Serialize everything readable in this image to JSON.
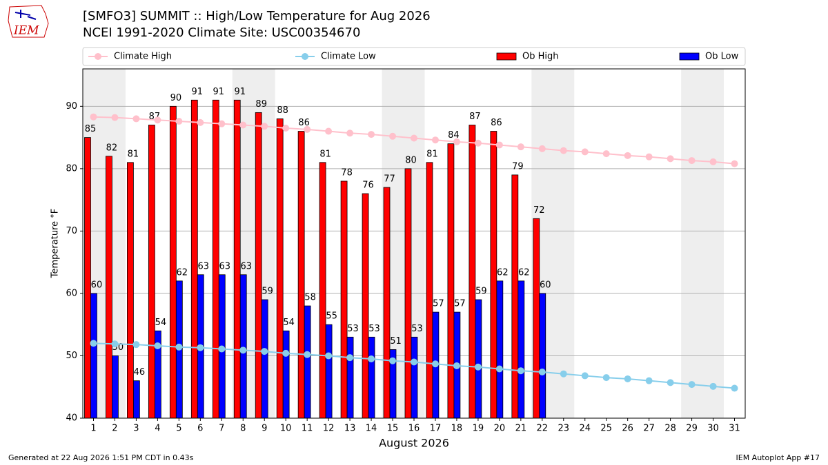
{
  "logo_text": "IEM",
  "footer_left": "Generated at 22 Aug 2026 1:51 PM CDT in 0.43s",
  "footer_right": "IEM Autoplot App #17",
  "chart_data": {
    "type": "bar",
    "title": "[SMFO3] SUMMIT :: High/Low Temperature for Aug 2026",
    "subtitle": "NCEI 1991-2020 Climate Site: USC00354670",
    "xlabel": "August 2026",
    "ylabel": "Temperature °F",
    "x": [
      1,
      2,
      3,
      4,
      5,
      6,
      7,
      8,
      9,
      10,
      11,
      12,
      13,
      14,
      15,
      16,
      17,
      18,
      19,
      20,
      21,
      22,
      23,
      24,
      25,
      26,
      27,
      28,
      29,
      30,
      31
    ],
    "series": [
      {
        "name": "Climate High",
        "type": "line",
        "color": "#ffc0cb",
        "values": [
          88.3,
          88.2,
          88.0,
          87.8,
          87.6,
          87.4,
          87.2,
          87.0,
          86.8,
          86.5,
          86.3,
          86.0,
          85.7,
          85.5,
          85.2,
          84.9,
          84.6,
          84.3,
          84.1,
          83.8,
          83.5,
          83.2,
          82.9,
          82.7,
          82.4,
          82.1,
          81.9,
          81.6,
          81.3,
          81.1,
          80.8
        ]
      },
      {
        "name": "Climate Low",
        "type": "line",
        "color": "#87ceeb",
        "values": [
          52.0,
          51.9,
          51.8,
          51.6,
          51.4,
          51.3,
          51.1,
          50.9,
          50.7,
          50.4,
          50.2,
          50.0,
          49.7,
          49.5,
          49.2,
          49.0,
          48.7,
          48.4,
          48.2,
          47.9,
          47.6,
          47.4,
          47.1,
          46.8,
          46.5,
          46.3,
          46.0,
          45.7,
          45.4,
          45.1,
          44.8
        ]
      },
      {
        "name": "Ob High",
        "type": "bar",
        "color": "#ff0000",
        "values": [
          85,
          82,
          81,
          87,
          90,
          91,
          91,
          91,
          89,
          88,
          86,
          81,
          78,
          76,
          77,
          80,
          81,
          84,
          87,
          86,
          79,
          72,
          null,
          null,
          null,
          null,
          null,
          null,
          null,
          null,
          null
        ]
      },
      {
        "name": "Ob Low",
        "type": "bar",
        "color": "#0000ff",
        "values": [
          60,
          50,
          46,
          54,
          62,
          63,
          63,
          63,
          59,
          54,
          58,
          55,
          53,
          53,
          51,
          53,
          57,
          57,
          59,
          62,
          62,
          60,
          null,
          null,
          null,
          null,
          null,
          null,
          null,
          null,
          null
        ]
      }
    ],
    "shaded_ranges": [
      [
        0.5,
        2.5
      ],
      [
        7.5,
        9.5
      ],
      [
        14.5,
        16.5
      ],
      [
        21.5,
        23.5
      ],
      [
        28.5,
        30.5
      ]
    ],
    "xlim": [
      0.5,
      31.5
    ],
    "ylim": [
      40,
      96
    ],
    "xticks": [
      1,
      2,
      3,
      4,
      5,
      6,
      7,
      8,
      9,
      10,
      11,
      12,
      13,
      14,
      15,
      16,
      17,
      18,
      19,
      20,
      21,
      22,
      23,
      24,
      25,
      26,
      27,
      28,
      29,
      30,
      31
    ],
    "yticks": [
      40,
      50,
      60,
      70,
      80,
      90
    ],
    "grid": true
  }
}
